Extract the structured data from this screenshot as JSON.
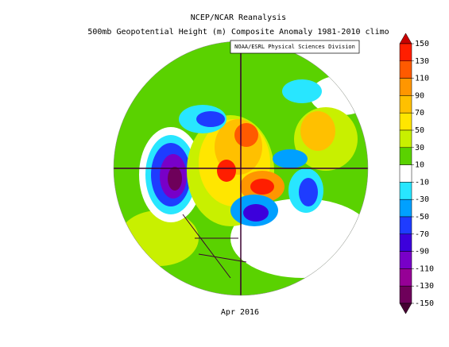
{
  "header": {
    "title": "NCEP/NCAR Reanalysis",
    "subtitle": "500mb Geopotential Height (m) Composite Anomaly 1981-2010 climo",
    "credit": "NOAA/ESRL Physical Sciences Division"
  },
  "footer": {
    "date": "Apr 2016"
  },
  "colorbar": {
    "ticks": [
      150,
      130,
      110,
      90,
      70,
      50,
      30,
      10,
      -10,
      -30,
      -50,
      -70,
      -90,
      -110,
      -130,
      -150
    ],
    "colors": [
      "#c80000",
      "#ff1e00",
      "#ff5a00",
      "#ff9600",
      "#ffc000",
      "#ffe600",
      "#c8f000",
      "#5ad200",
      "#ffffff",
      "#28e6ff",
      "#00a0ff",
      "#1e3cff",
      "#3c00dc",
      "#7800c8",
      "#960096",
      "#6e005a",
      "#460032"
    ]
  }
}
